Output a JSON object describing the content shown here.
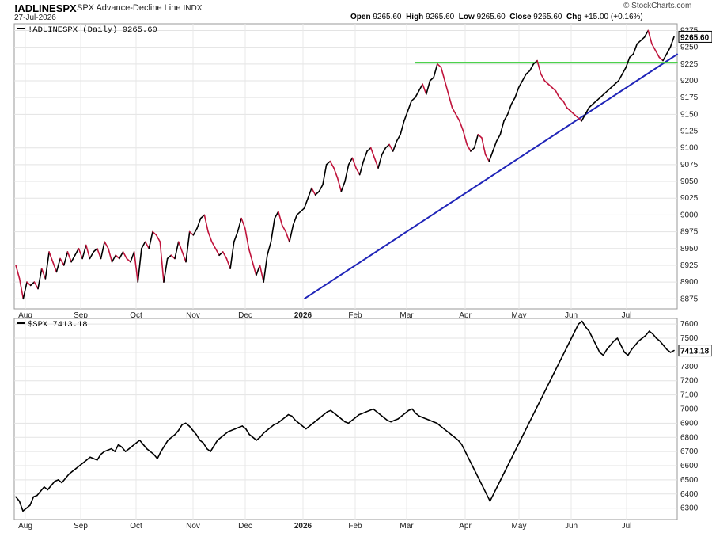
{
  "header": {
    "symbol": "!ADLINESPX",
    "name": "SPX Advance-Decline Line",
    "exchange": "INDX",
    "date": "27-Jul-2026",
    "open_label": "Open",
    "open": "9265.60",
    "high_label": "High",
    "high": "9265.60",
    "low_label": "Low",
    "low": "9265.60",
    "close_label": "Close",
    "close": "9265.60",
    "chg_label": "Chg",
    "chg": "+15.00 (+0.16%)",
    "copyright": "© StockCharts.com"
  },
  "x_labels": [
    {
      "label": "Aug",
      "bold": false
    },
    {
      "label": "Sep",
      "bold": false
    },
    {
      "label": "Oct",
      "bold": false
    },
    {
      "label": "Nov",
      "bold": false
    },
    {
      "label": "Dec",
      "bold": false
    },
    {
      "label": "2026",
      "bold": true
    },
    {
      "label": "Feb",
      "bold": false
    },
    {
      "label": "Mar",
      "bold": false
    },
    {
      "label": "Apr",
      "bold": false
    },
    {
      "label": "May",
      "bold": false
    },
    {
      "label": "Jun",
      "bold": false
    },
    {
      "label": "Jul",
      "bold": false
    }
  ],
  "chart_data": [
    {
      "type": "line",
      "legend": "!ADLINESPX (Daily) 9265.60",
      "last_value_label": "9265.60",
      "ylim": [
        8860,
        9285
      ],
      "yticks": [
        8875,
        8900,
        8925,
        8950,
        8975,
        9000,
        9025,
        9050,
        9075,
        9100,
        9125,
        9150,
        9175,
        9200,
        9225,
        9250,
        9275
      ],
      "color_up": "#000000",
      "color_down": "#c0143c",
      "x_axis": "months (Aug 2025 – Jul 2026)",
      "series": [
        {
          "values": [
            8925,
            8905,
            8875,
            8900,
            8895,
            8900,
            8890,
            8920,
            8905,
            8945,
            8930,
            8915,
            8935,
            8925,
            8945,
            8930,
            8940,
            8950,
            8935,
            8955,
            8935,
            8945,
            8950,
            8935,
            8960,
            8950,
            8930,
            8940,
            8935,
            8945,
            8935,
            8930,
            8945,
            8900,
            8950,
            8960,
            8950,
            8975,
            8970,
            8960,
            8900,
            8935,
            8940,
            8935,
            8960,
            8945,
            8930,
            8975,
            8970,
            8980,
            8995,
            9000,
            8975,
            8960,
            8950,
            8940,
            8945,
            8935,
            8920,
            8960,
            8975,
            8995,
            8980,
            8950,
            8930,
            8910,
            8925,
            8900,
            8940,
            8960,
            8995,
            9005,
            8985,
            8975,
            8960,
            8985,
            9000,
            9005,
            9010,
            9025,
            9040,
            9030,
            9035,
            9045,
            9075,
            9080,
            9070,
            9055,
            9035,
            9050,
            9075,
            9085,
            9070,
            9060,
            9080,
            9095,
            9100,
            9085,
            9070,
            9090,
            9100,
            9105,
            9095,
            9110,
            9120,
            9140,
            9155,
            9170,
            9175,
            9185,
            9195,
            9180,
            9200,
            9205,
            9225,
            9220,
            9200,
            9180,
            9160,
            9150,
            9140,
            9125,
            9105,
            9095,
            9100,
            9120,
            9115,
            9090,
            9080,
            9095,
            9110,
            9120,
            9140,
            9150,
            9165,
            9175,
            9190,
            9200,
            9210,
            9215,
            9225,
            9230,
            9210,
            9200,
            9195,
            9190,
            9185,
            9175,
            9170,
            9160,
            9155,
            9150,
            9145,
            9140,
            9150,
            9160,
            9165,
            9170,
            9175,
            9180,
            9185,
            9190,
            9195,
            9200,
            9210,
            9220,
            9235,
            9240,
            9255,
            9260,
            9265,
            9275,
            9255,
            9245,
            9235,
            9230,
            9240,
            9250,
            9265.6
          ]
        }
      ],
      "trendlines": [
        {
          "name": "support-trendline",
          "color": "#1f24b8",
          "start": {
            "x": 78,
            "y": 8875
          },
          "end": {
            "x": 179,
            "y": 9240
          }
        },
        {
          "name": "resistance-line",
          "color": "#33cc33",
          "start": {
            "x": 108,
            "y": 9227
          },
          "end": {
            "x": 179,
            "y": 9227
          }
        }
      ]
    },
    {
      "type": "line",
      "legend": "$SPX 7413.18",
      "last_value_label": "7413.18",
      "ylim": [
        6220,
        7640
      ],
      "yticks": [
        6300,
        6400,
        6500,
        6600,
        6700,
        6800,
        6900,
        7000,
        7100,
        7200,
        7300,
        7400,
        7500,
        7600
      ],
      "color": "#000000",
      "x_axis": "months (Aug 2025 – Jul 2026)",
      "series": [
        {
          "values": [
            6380,
            6350,
            6280,
            6300,
            6320,
            6380,
            6390,
            6420,
            6450,
            6430,
            6460,
            6490,
            6500,
            6480,
            6510,
            6540,
            6560,
            6580,
            6600,
            6620,
            6640,
            6660,
            6650,
            6640,
            6680,
            6700,
            6710,
            6720,
            6700,
            6750,
            6730,
            6700,
            6720,
            6740,
            6760,
            6780,
            6750,
            6720,
            6700,
            6680,
            6650,
            6700,
            6740,
            6780,
            6800,
            6820,
            6850,
            6890,
            6900,
            6880,
            6850,
            6820,
            6780,
            6760,
            6720,
            6700,
            6740,
            6780,
            6800,
            6820,
            6840,
            6850,
            6860,
            6870,
            6880,
            6860,
            6820,
            6800,
            6780,
            6800,
            6830,
            6850,
            6870,
            6890,
            6900,
            6920,
            6940,
            6960,
            6950,
            6920,
            6900,
            6880,
            6860,
            6880,
            6900,
            6920,
            6940,
            6960,
            6980,
            6990,
            6970,
            6950,
            6930,
            6910,
            6900,
            6920,
            6940,
            6960,
            6970,
            6980,
            6990,
            7000,
            6980,
            6960,
            6940,
            6920,
            6910,
            6920,
            6930,
            6950,
            6970,
            6990,
            7000,
            6970,
            6950,
            6940,
            6930,
            6920,
            6910,
            6900,
            6880,
            6860,
            6840,
            6820,
            6800,
            6780,
            6750,
            6700,
            6650,
            6600,
            6550,
            6500,
            6450,
            6400,
            6350,
            6400,
            6450,
            6500,
            6550,
            6600,
            6650,
            6700,
            6750,
            6800,
            6850,
            6900,
            6950,
            7000,
            7050,
            7100,
            7150,
            7200,
            7250,
            7300,
            7350,
            7400,
            7450,
            7500,
            7550,
            7600,
            7620,
            7580,
            7550,
            7500,
            7450,
            7400,
            7380,
            7420,
            7450,
            7480,
            7500,
            7450,
            7400,
            7380,
            7420,
            7450,
            7480,
            7500,
            7520,
            7550,
            7530,
            7500,
            7480,
            7450,
            7420,
            7400,
            7413.18
          ]
        }
      ]
    }
  ]
}
